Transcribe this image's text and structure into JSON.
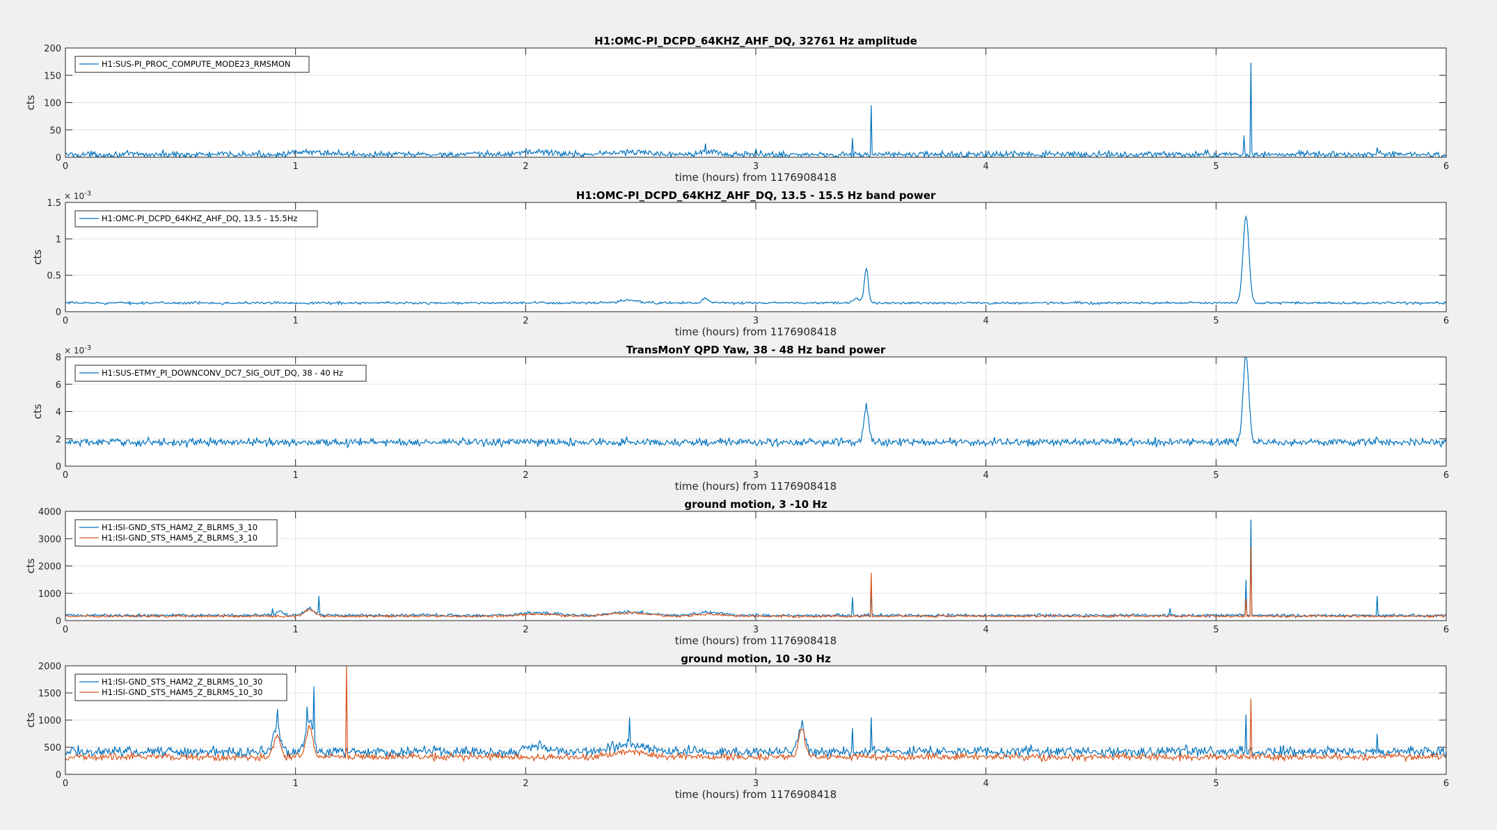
{
  "figure": {
    "background": "#f0f0f0",
    "series_colors": [
      "#0072bd",
      "#d95319"
    ]
  },
  "chart_data": [
    {
      "type": "line",
      "title": "H1:OMC-PI_DCPD_64KHZ_AHF_DQ, 32761 Hz amplitude",
      "xlabel": "time (hours) from 1176908418",
      "ylabel": "cts",
      "xlim": [
        0,
        6
      ],
      "ylim": [
        0,
        200
      ],
      "xticks": [
        "0",
        "1",
        "2",
        "3",
        "4",
        "5",
        "6"
      ],
      "yticks": [
        "0",
        "50",
        "100",
        "150",
        "200"
      ],
      "exponent": "",
      "grid": true,
      "legend_position": "top-left",
      "series": [
        {
          "name": "H1:SUS-PI_PROC_COMPUTE_MODE23_RMSMON",
          "color": "#0072bd",
          "baseline": 5,
          "noise": 4,
          "bumps": [
            [
              1.08,
              0.12,
              4
            ],
            [
              2.05,
              0.1,
              5
            ],
            [
              2.45,
              0.15,
              4
            ],
            [
              2.78,
              0.06,
              6
            ]
          ],
          "spikes": [
            [
              2.0,
              15
            ],
            [
              2.78,
              25
            ],
            [
              3.0,
              15
            ],
            [
              3.42,
              35
            ],
            [
              3.5,
              95
            ],
            [
              5.12,
              40
            ],
            [
              5.15,
              173
            ],
            [
              5.7,
              18
            ]
          ]
        }
      ]
    },
    {
      "type": "line",
      "title": "H1:OMC-PI_DCPD_64KHZ_AHF_DQ, 13.5 - 15.5 Hz band power",
      "xlabel": "time (hours) from 1176908418",
      "ylabel": "cts",
      "xlim": [
        0,
        6
      ],
      "ylim": [
        0,
        0.0015
      ],
      "xticks": [
        "0",
        "1",
        "2",
        "3",
        "4",
        "5",
        "6"
      ],
      "yticks": [
        "0",
        "0.5",
        "1",
        "1.5"
      ],
      "exponent": "-3",
      "grid": true,
      "legend_position": "top-left",
      "series": [
        {
          "name": "H1:OMC-PI_DCPD_64KHZ_AHF_DQ, 13.5 - 15.5Hz",
          "color": "#0072bd",
          "baseline": 0.00012,
          "noise": 1.2e-05,
          "bumps": [
            [
              2.45,
              0.05,
              4e-05
            ],
            [
              2.78,
              0.02,
              6e-05
            ],
            [
              3.44,
              0.02,
              6e-05
            ],
            [
              3.48,
              0.012,
              0.00048
            ],
            [
              5.13,
              0.018,
              0.0012
            ]
          ],
          "spikes": []
        }
      ]
    },
    {
      "type": "line",
      "title": "TransMonY QPD Yaw, 38 - 48 Hz band power",
      "xlabel": "time (hours) from 1176908418",
      "ylabel": "cts",
      "xlim": [
        0,
        6
      ],
      "ylim": [
        0,
        0.008
      ],
      "xticks": [
        "0",
        "1",
        "2",
        "3",
        "4",
        "5",
        "6"
      ],
      "yticks": [
        "0",
        "2",
        "4",
        "6",
        "8"
      ],
      "exponent": "-3",
      "grid": true,
      "legend_position": "top-left",
      "series": [
        {
          "name": "H1:SUS-ETMY_PI_DOWNCONV_DC7_SIG_OUT_DQ, 38 - 40 Hz",
          "color": "#0072bd",
          "baseline": 0.00175,
          "noise": 0.0002,
          "bumps": [
            [
              3.48,
              0.015,
              0.0026
            ],
            [
              5.13,
              0.018,
              0.0062
            ]
          ],
          "spikes": []
        }
      ]
    },
    {
      "type": "line",
      "title": "ground motion, 3 -10 Hz",
      "xlabel": "time (hours) from 1176908418",
      "ylabel": "cts",
      "xlim": [
        0,
        6
      ],
      "ylim": [
        0,
        4000
      ],
      "xticks": [
        "0",
        "1",
        "2",
        "3",
        "4",
        "5",
        "6"
      ],
      "yticks": [
        "0",
        "1000",
        "2000",
        "3000",
        "4000"
      ],
      "exponent": "",
      "grid": true,
      "legend_position": "top-left",
      "series": [
        {
          "name": "H1:ISI-GND_STS_HAM2_Z_BLRMS_3_10",
          "color": "#0072bd",
          "baseline": 190,
          "noise": 40,
          "bumps": [
            [
              0.93,
              0.02,
              150
            ],
            [
              1.06,
              0.03,
              250
            ],
            [
              2.05,
              0.1,
              100
            ],
            [
              2.45,
              0.12,
              120
            ],
            [
              2.8,
              0.08,
              100
            ]
          ],
          "spikes": [
            [
              0.9,
              450
            ],
            [
              1.1,
              900
            ],
            [
              3.42,
              850
            ],
            [
              3.5,
              1100
            ],
            [
              4.8,
              450
            ],
            [
              5.13,
              1500
            ],
            [
              5.15,
              3700
            ],
            [
              5.7,
              900
            ]
          ]
        },
        {
          "name": "H1:ISI-GND_STS_HAM5_Z_BLRMS_3_10",
          "color": "#d95319",
          "baseline": 160,
          "noise": 30,
          "bumps": [
            [
              1.06,
              0.03,
              250
            ],
            [
              2.05,
              0.1,
              80
            ],
            [
              2.45,
              0.12,
              120
            ],
            [
              2.8,
              0.08,
              80
            ]
          ],
          "spikes": [
            [
              3.5,
              1750
            ],
            [
              5.13,
              800
            ],
            [
              5.15,
              2700
            ]
          ]
        }
      ]
    },
    {
      "type": "line",
      "title": "ground motion, 10 -30 Hz",
      "xlabel": "time (hours) from 1176908418",
      "ylabel": "cts",
      "xlim": [
        0,
        6
      ],
      "ylim": [
        0,
        2000
      ],
      "xticks": [
        "0",
        "1",
        "2",
        "3",
        "4",
        "5",
        "6"
      ],
      "yticks": [
        "0",
        "500",
        "1000",
        "1500",
        "2000"
      ],
      "exponent": "",
      "grid": true,
      "legend_position": "top-left",
      "series": [
        {
          "name": "H1:ISI-GND_STS_HAM2_Z_BLRMS_10_30",
          "color": "#0072bd",
          "baseline": 420,
          "noise": 65,
          "bumps": [
            [
              0.92,
              0.02,
              500
            ],
            [
              1.06,
              0.02,
              600
            ],
            [
              2.05,
              0.06,
              120
            ],
            [
              2.45,
              0.1,
              150
            ],
            [
              3.2,
              0.02,
              450
            ]
          ],
          "spikes": [
            [
              0.92,
              1200
            ],
            [
              1.05,
              1250
            ],
            [
              1.08,
              1620
            ],
            [
              2.45,
              1050
            ],
            [
              3.2,
              1000
            ],
            [
              3.42,
              850
            ],
            [
              3.5,
              1050
            ],
            [
              5.13,
              1100
            ],
            [
              5.7,
              750
            ]
          ]
        },
        {
          "name": "H1:ISI-GND_STS_HAM5_Z_BLRMS_10_30",
          "color": "#d95319",
          "baseline": 320,
          "noise": 45,
          "bumps": [
            [
              0.92,
              0.02,
              400
            ],
            [
              1.06,
              0.02,
              550
            ],
            [
              2.45,
              0.1,
              100
            ],
            [
              3.2,
              0.02,
              550
            ]
          ],
          "spikes": [
            [
              1.22,
              2000
            ],
            [
              5.15,
              1400
            ]
          ]
        }
      ]
    }
  ]
}
